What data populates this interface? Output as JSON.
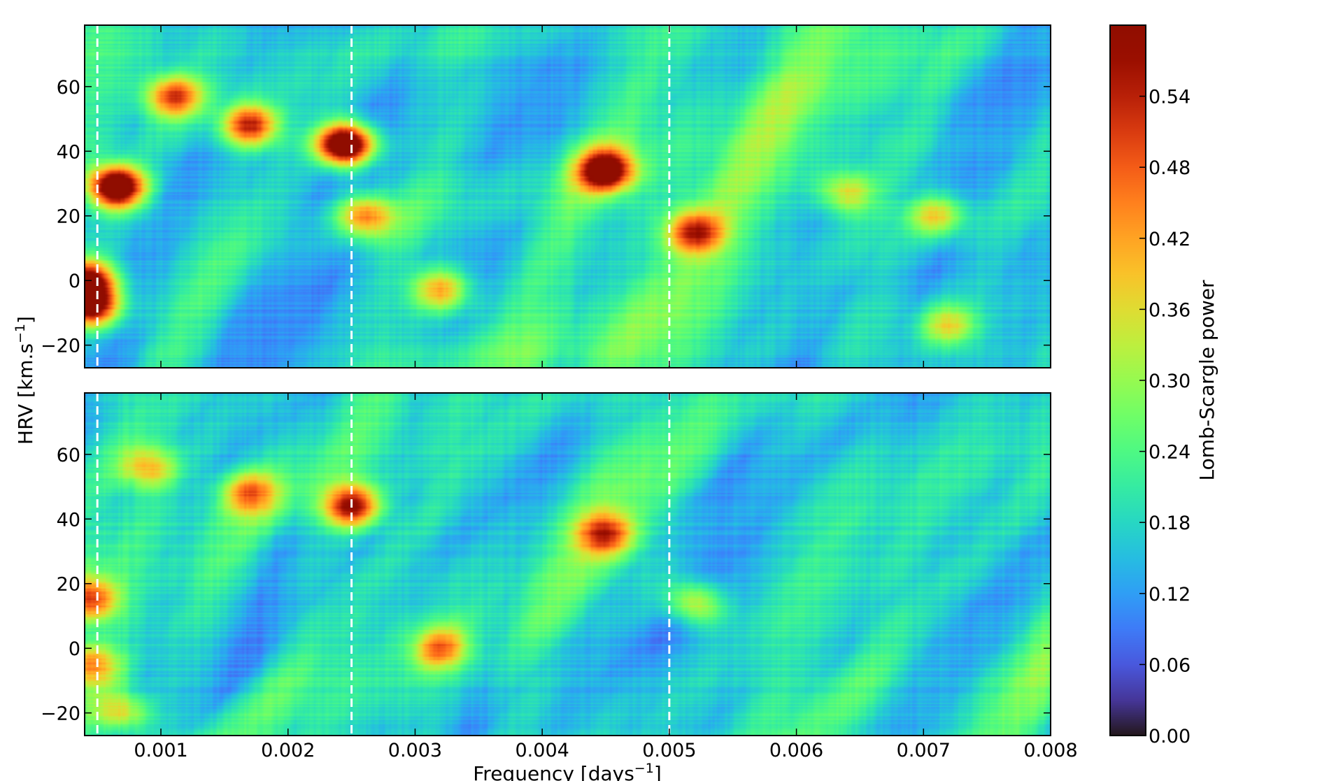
{
  "chart_data": {
    "type": "heatmap",
    "panels": [
      {
        "id": "top",
        "description_values": "Lomb-Scargle power vs frequency and HRV",
        "peaks": [
          {
            "f": 0.00065,
            "v": 29,
            "power": 0.58
          },
          {
            "f": 0.00042,
            "v": 0,
            "power": 0.46
          },
          {
            "f": 0.00045,
            "v": -8,
            "power": 0.44
          },
          {
            "f": 0.00245,
            "v": 42,
            "power": 0.6
          },
          {
            "f": 0.0017,
            "v": 48,
            "power": 0.38
          },
          {
            "f": 0.0011,
            "v": 57,
            "power": 0.33
          },
          {
            "f": 0.0045,
            "v": 34,
            "power": 0.46
          },
          {
            "f": 0.0052,
            "v": 15,
            "power": 0.32
          },
          {
            "f": 0.0032,
            "v": -3,
            "power": 0.26
          },
          {
            "f": 0.0026,
            "v": 20,
            "power": 0.28
          },
          {
            "f": 0.0071,
            "v": 20,
            "power": 0.22
          },
          {
            "f": 0.0064,
            "v": 27,
            "power": 0.2
          },
          {
            "f": 0.0072,
            "v": -14,
            "power": 0.2
          }
        ]
      },
      {
        "id": "bottom",
        "peaks": [
          {
            "f": 0.0025,
            "v": 44,
            "power": 0.4
          },
          {
            "f": 0.0045,
            "v": 35,
            "power": 0.3
          },
          {
            "f": 0.0052,
            "v": 14,
            "power": 0.24
          },
          {
            "f": 0.0032,
            "v": 0,
            "power": 0.26
          },
          {
            "f": 0.00045,
            "v": 15,
            "power": 0.3
          },
          {
            "f": 0.00045,
            "v": -5,
            "power": 0.24
          },
          {
            "f": 0.0017,
            "v": 48,
            "power": 0.26
          },
          {
            "f": 0.0009,
            "v": 56,
            "power": 0.22
          },
          {
            "f": 0.0007,
            "v": -20,
            "power": 0.22
          }
        ]
      }
    ],
    "dashed_lines_x": [
      0.0005,
      0.0025,
      0.005
    ],
    "xlim": [
      0.0004,
      0.008
    ],
    "ylim": [
      -27,
      79
    ],
    "xticks": [
      0.001,
      0.002,
      0.003,
      0.004,
      0.005,
      0.006,
      0.007,
      0.008
    ],
    "xtick_labels": [
      "0.001",
      "0.002",
      "0.003",
      "0.004",
      "0.005",
      "0.006",
      "0.007",
      "0.008"
    ],
    "yticks": [
      -20,
      0,
      20,
      40,
      60
    ],
    "ytick_labels": [
      "−20",
      "0",
      "20",
      "40",
      "60"
    ],
    "xlabel_main": "Frequency [days",
    "xlabel_sup": "−1",
    "xlabel_end": "]",
    "ylabel_main": "HRV [km.s",
    "ylabel_sup": "−1",
    "ylabel_end": "]",
    "colorbar": {
      "label": "Lomb-Scargle power",
      "range": [
        0.0,
        0.6
      ],
      "ticks": [
        0.0,
        0.06,
        0.12,
        0.18,
        0.24,
        0.3,
        0.36,
        0.42,
        0.48,
        0.54
      ],
      "tick_labels": [
        "0.00",
        "0.06",
        "0.12",
        "0.18",
        "0.24",
        "0.30",
        "0.36",
        "0.42",
        "0.48",
        "0.54"
      ],
      "colormap": "turbo"
    }
  }
}
